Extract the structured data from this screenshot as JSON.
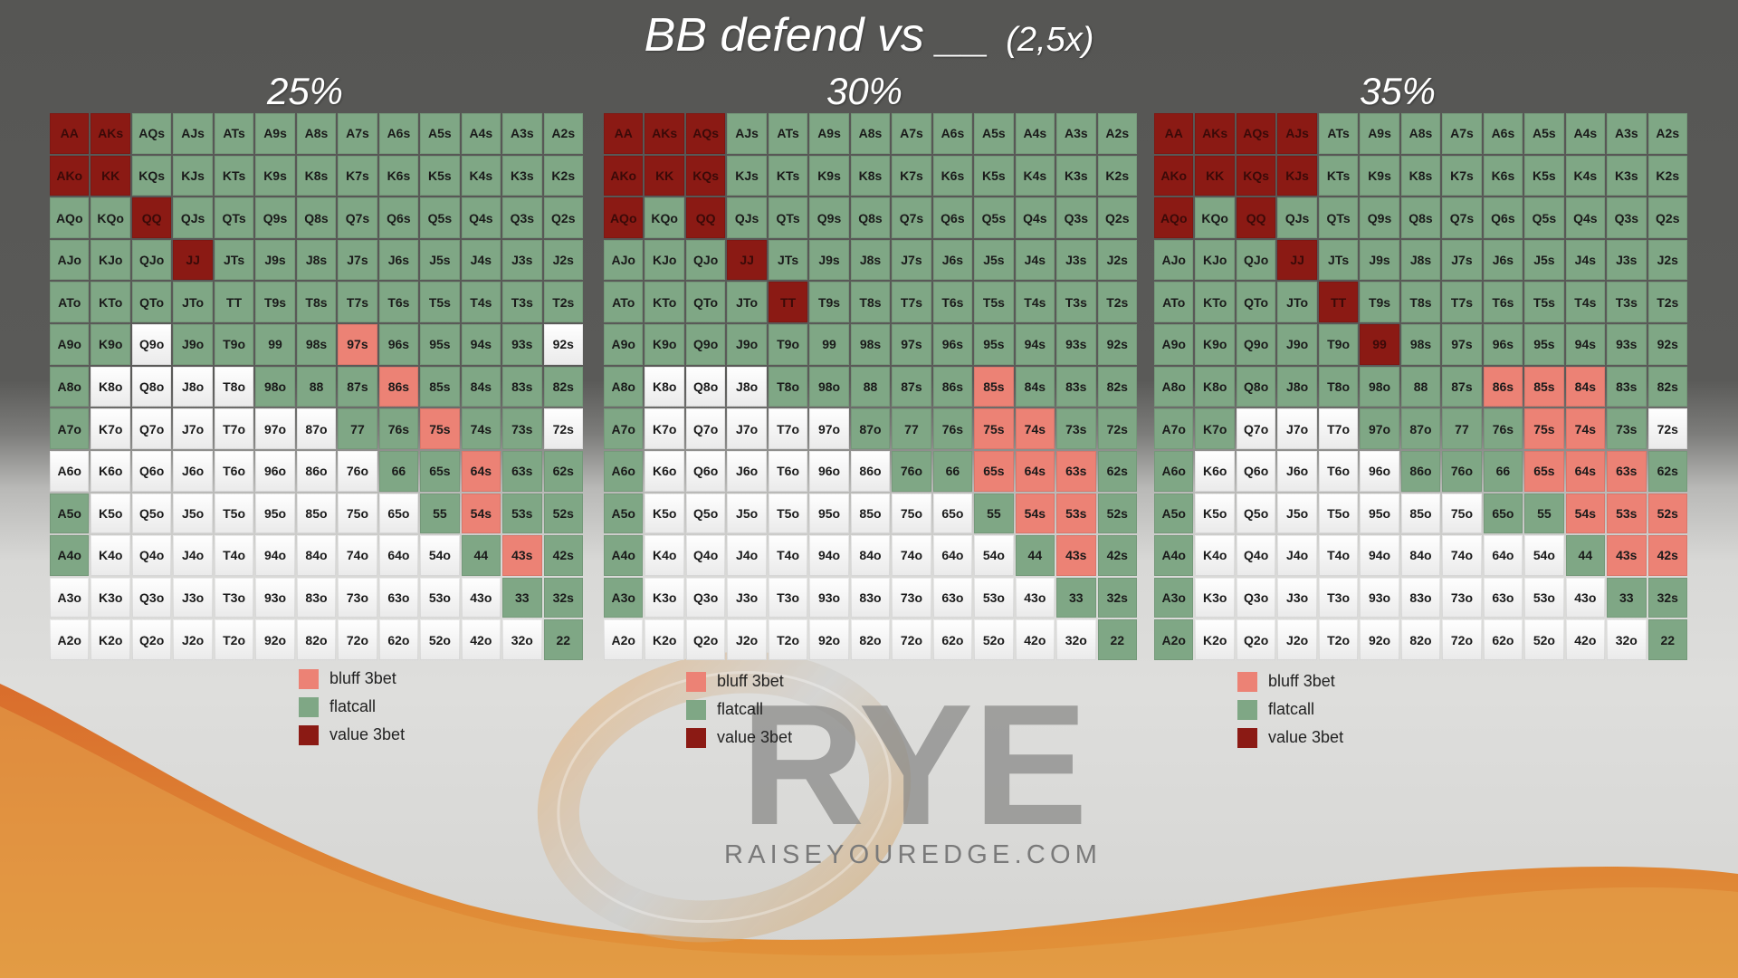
{
  "title": "BB defend vs __",
  "subtitle": "(2,5x)",
  "colors": {
    "bluff": "#ec8275",
    "flat": "#7fa785",
    "value": "#8b1a14",
    "fold": "#f4f4f4"
  },
  "charts": [
    {
      "label": "25%",
      "rows": [
        [
          "VAA",
          "VAKs",
          "FAQs",
          "FAJs",
          "FATs",
          "FA9s",
          "FA8s",
          "FA7s",
          "FA6s",
          "FA5s",
          "FA4s",
          "FA3s",
          "FA2s"
        ],
        [
          "VAKo",
          "VKK",
          "FKQs",
          "FKJs",
          "FKTs",
          "FK9s",
          "FK8s",
          "FK7s",
          "FK6s",
          "FK5s",
          "FK4s",
          "FK3s",
          "FK2s"
        ],
        [
          "FAQo",
          "FKQo",
          "VQQ",
          "FQJs",
          "FQTs",
          "FQ9s",
          "FQ8s",
          "FQ7s",
          "FQ6s",
          "FQ5s",
          "FQ4s",
          "FQ3s",
          "FQ2s"
        ],
        [
          "FAJo",
          "FKJo",
          "FQJo",
          "VJJ",
          "FJTs",
          "FJ9s",
          "FJ8s",
          "FJ7s",
          "FJ6s",
          "FJ5s",
          "FJ4s",
          "FJ3s",
          "FJ2s"
        ],
        [
          "FATo",
          "FKTo",
          "FQTo",
          "FJTo",
          "FTT",
          "FT9s",
          "FT8s",
          "FT7s",
          "FT6s",
          "FT5s",
          "FT4s",
          "FT3s",
          "FT2s"
        ],
        [
          "FA9o",
          "FK9o",
          "-Q9o",
          "FJ9o",
          "FT9o",
          "F99",
          "F98s",
          "B97s",
          "F96s",
          "F95s",
          "F94s",
          "F93s",
          "-92s"
        ],
        [
          "FA8o",
          "-K8o",
          "-Q8o",
          "-J8o",
          "-T8o",
          "F98o",
          "F88",
          "F87s",
          "B86s",
          "F85s",
          "F84s",
          "F83s",
          "F82s"
        ],
        [
          "FA7o",
          "-K7o",
          "-Q7o",
          "-J7o",
          "-T7o",
          "-97o",
          "-87o",
          "F77",
          "F76s",
          "B75s",
          "F74s",
          "F73s",
          "-72s"
        ],
        [
          "-A6o",
          "-K6o",
          "-Q6o",
          "-J6o",
          "-T6o",
          "-96o",
          "-86o",
          "-76o",
          "F66",
          "F65s",
          "B64s",
          "F63s",
          "F62s"
        ],
        [
          "FA5o",
          "-K5o",
          "-Q5o",
          "-J5o",
          "-T5o",
          "-95o",
          "-85o",
          "-75o",
          "-65o",
          "F55",
          "B54s",
          "F53s",
          "F52s"
        ],
        [
          "FA4o",
          "-K4o",
          "-Q4o",
          "-J4o",
          "-T4o",
          "-94o",
          "-84o",
          "-74o",
          "-64o",
          "-54o",
          "F44",
          "B43s",
          "F42s"
        ],
        [
          "-A3o",
          "-K3o",
          "-Q3o",
          "-J3o",
          "-T3o",
          "-93o",
          "-83o",
          "-73o",
          "-63o",
          "-53o",
          "-43o",
          "F33",
          "F32s"
        ],
        [
          "-A2o",
          "-K2o",
          "-Q2o",
          "-J2o",
          "-T2o",
          "-92o",
          "-82o",
          "-72o",
          "-62o",
          "-52o",
          "-42o",
          "-32o",
          "F22"
        ]
      ]
    },
    {
      "label": "30%",
      "rows": [
        [
          "VAA",
          "VAKs",
          "VAQs",
          "FAJs",
          "FATs",
          "FA9s",
          "FA8s",
          "FA7s",
          "FA6s",
          "FA5s",
          "FA4s",
          "FA3s",
          "FA2s"
        ],
        [
          "VAKo",
          "VKK",
          "VKQs",
          "FKJs",
          "FKTs",
          "FK9s",
          "FK8s",
          "FK7s",
          "FK6s",
          "FK5s",
          "FK4s",
          "FK3s",
          "FK2s"
        ],
        [
          "VAQo",
          "FKQo",
          "VQQ",
          "FQJs",
          "FQTs",
          "FQ9s",
          "FQ8s",
          "FQ7s",
          "FQ6s",
          "FQ5s",
          "FQ4s",
          "FQ3s",
          "FQ2s"
        ],
        [
          "FAJo",
          "FKJo",
          "FQJo",
          "VJJ",
          "FJTs",
          "FJ9s",
          "FJ8s",
          "FJ7s",
          "FJ6s",
          "FJ5s",
          "FJ4s",
          "FJ3s",
          "FJ2s"
        ],
        [
          "FATo",
          "FKTo",
          "FQTo",
          "FJTo",
          "VTT",
          "FT9s",
          "FT8s",
          "FT7s",
          "FT6s",
          "FT5s",
          "FT4s",
          "FT3s",
          "FT2s"
        ],
        [
          "FA9o",
          "FK9o",
          "FQ9o",
          "FJ9o",
          "FT9o",
          "F99",
          "F98s",
          "F97s",
          "F96s",
          "F95s",
          "F94s",
          "F93s",
          "F92s"
        ],
        [
          "FA8o",
          "-K8o",
          "-Q8o",
          "-J8o",
          "FT8o",
          "F98o",
          "F88",
          "F87s",
          "F86s",
          "B85s",
          "F84s",
          "F83s",
          "F82s"
        ],
        [
          "FA7o",
          "-K7o",
          "-Q7o",
          "-J7o",
          "-T7o",
          "-97o",
          "F87o",
          "F77",
          "F76s",
          "B75s",
          "B74s",
          "F73s",
          "F72s"
        ],
        [
          "FA6o",
          "-K6o",
          "-Q6o",
          "-J6o",
          "-T6o",
          "-96o",
          "-86o",
          "F76o",
          "F66",
          "B65s",
          "B64s",
          "B63s",
          "F62s"
        ],
        [
          "FA5o",
          "-K5o",
          "-Q5o",
          "-J5o",
          "-T5o",
          "-95o",
          "-85o",
          "-75o",
          "-65o",
          "F55",
          "B54s",
          "B53s",
          "F52s"
        ],
        [
          "FA4o",
          "-K4o",
          "-Q4o",
          "-J4o",
          "-T4o",
          "-94o",
          "-84o",
          "-74o",
          "-64o",
          "-54o",
          "F44",
          "B43s",
          "F42s"
        ],
        [
          "FA3o",
          "-K3o",
          "-Q3o",
          "-J3o",
          "-T3o",
          "-93o",
          "-83o",
          "-73o",
          "-63o",
          "-53o",
          "-43o",
          "F33",
          "F32s"
        ],
        [
          "-A2o",
          "-K2o",
          "-Q2o",
          "-J2o",
          "-T2o",
          "-92o",
          "-82o",
          "-72o",
          "-62o",
          "-52o",
          "-42o",
          "-32o",
          "F22"
        ]
      ]
    },
    {
      "label": "35%",
      "rows": [
        [
          "VAA",
          "VAKs",
          "VAQs",
          "VAJs",
          "FATs",
          "FA9s",
          "FA8s",
          "FA7s",
          "FA6s",
          "FA5s",
          "FA4s",
          "FA3s",
          "FA2s"
        ],
        [
          "VAKo",
          "VKK",
          "VKQs",
          "VKJs",
          "FKTs",
          "FK9s",
          "FK8s",
          "FK7s",
          "FK6s",
          "FK5s",
          "FK4s",
          "FK3s",
          "FK2s"
        ],
        [
          "VAQo",
          "FKQo",
          "VQQ",
          "FQJs",
          "FQTs",
          "FQ9s",
          "FQ8s",
          "FQ7s",
          "FQ6s",
          "FQ5s",
          "FQ4s",
          "FQ3s",
          "FQ2s"
        ],
        [
          "FAJo",
          "FKJo",
          "FQJo",
          "VJJ",
          "FJTs",
          "FJ9s",
          "FJ8s",
          "FJ7s",
          "FJ6s",
          "FJ5s",
          "FJ4s",
          "FJ3s",
          "FJ2s"
        ],
        [
          "FATo",
          "FKTo",
          "FQTo",
          "FJTo",
          "VTT",
          "FT9s",
          "FT8s",
          "FT7s",
          "FT6s",
          "FT5s",
          "FT4s",
          "FT3s",
          "FT2s"
        ],
        [
          "FA9o",
          "FK9o",
          "FQ9o",
          "FJ9o",
          "FT9o",
          "V99",
          "F98s",
          "F97s",
          "F96s",
          "F95s",
          "F94s",
          "F93s",
          "F92s"
        ],
        [
          "FA8o",
          "FK8o",
          "FQ8o",
          "FJ8o",
          "FT8o",
          "F98o",
          "F88",
          "F87s",
          "B86s",
          "B85s",
          "B84s",
          "F83s",
          "F82s"
        ],
        [
          "FA7o",
          "FK7o",
          "-Q7o",
          "-J7o",
          "-T7o",
          "F97o",
          "F87o",
          "F77",
          "F76s",
          "B75s",
          "B74s",
          "F73s",
          "-72s"
        ],
        [
          "FA6o",
          "-K6o",
          "-Q6o",
          "-J6o",
          "-T6o",
          "-96o",
          "F86o",
          "F76o",
          "F66",
          "B65s",
          "B64s",
          "B63s",
          "F62s"
        ],
        [
          "FA5o",
          "-K5o",
          "-Q5o",
          "-J5o",
          "-T5o",
          "-95o",
          "-85o",
          "-75o",
          "F65o",
          "F55",
          "B54s",
          "B53s",
          "B52s"
        ],
        [
          "FA4o",
          "-K4o",
          "-Q4o",
          "-J4o",
          "-T4o",
          "-94o",
          "-84o",
          "-74o",
          "-64o",
          "-54o",
          "F44",
          "B43s",
          "B42s"
        ],
        [
          "FA3o",
          "-K3o",
          "-Q3o",
          "-J3o",
          "-T3o",
          "-93o",
          "-83o",
          "-73o",
          "-63o",
          "-53o",
          "-43o",
          "F33",
          "F32s"
        ],
        [
          "FA2o",
          "-K2o",
          "-Q2o",
          "-J2o",
          "-T2o",
          "-92o",
          "-82o",
          "-72o",
          "-62o",
          "-52o",
          "-42o",
          "-32o",
          "F22"
        ]
      ]
    }
  ],
  "legend": {
    "bluff": "bluff 3bet",
    "flat": "flatcall",
    "value": "value 3bet"
  },
  "logo": {
    "mark": "RYE",
    "url": "RAISEYOUREDGE.COM"
  }
}
